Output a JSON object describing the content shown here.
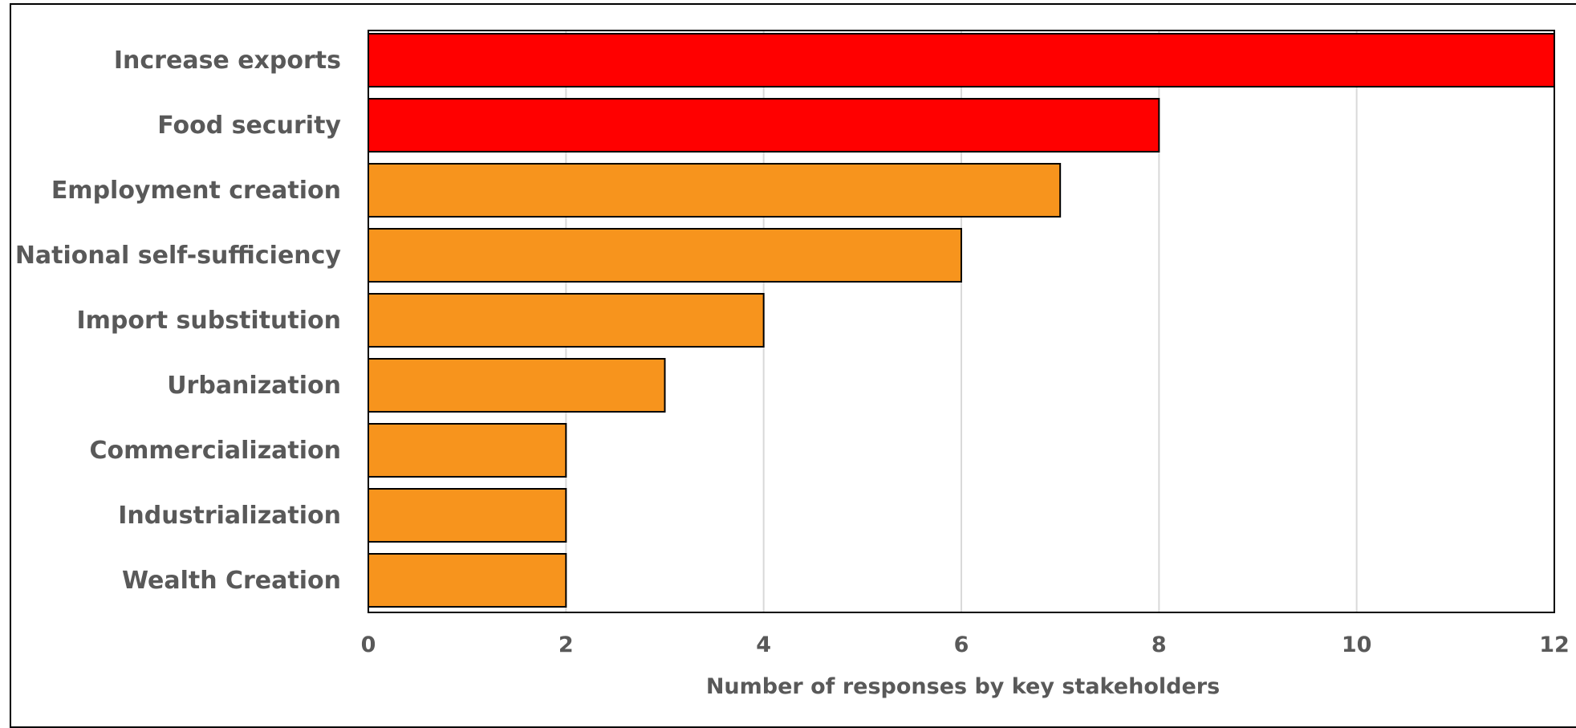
{
  "chart_data": {
    "type": "bar",
    "orientation": "horizontal",
    "title": "",
    "xlabel": "Number of responses by key stakeholders",
    "ylabel": "",
    "xlim": [
      0,
      12
    ],
    "x_ticks": [
      0,
      2,
      4,
      6,
      8,
      10,
      12
    ],
    "grid": "vertical",
    "legend": "none",
    "categories": [
      "Increase exports",
      "Food security",
      "Employment creation",
      "National self-sufficiency",
      "Import substitution",
      "Urbanization",
      "Commercialization",
      "Industrialization",
      "Wealth Creation"
    ],
    "values": [
      12,
      8,
      7,
      6,
      4,
      3,
      2,
      2,
      2
    ],
    "bar_colors": [
      "#ff0000",
      "#ff0000",
      "#f7941d",
      "#f7941d",
      "#f7941d",
      "#f7941d",
      "#f7941d",
      "#f7941d",
      "#f7941d"
    ]
  },
  "colors": {
    "highlight": "#ff0000",
    "default": "#f7941d",
    "gridline": "#d9d9d9",
    "text": "#595959",
    "outline": "#000000"
  }
}
